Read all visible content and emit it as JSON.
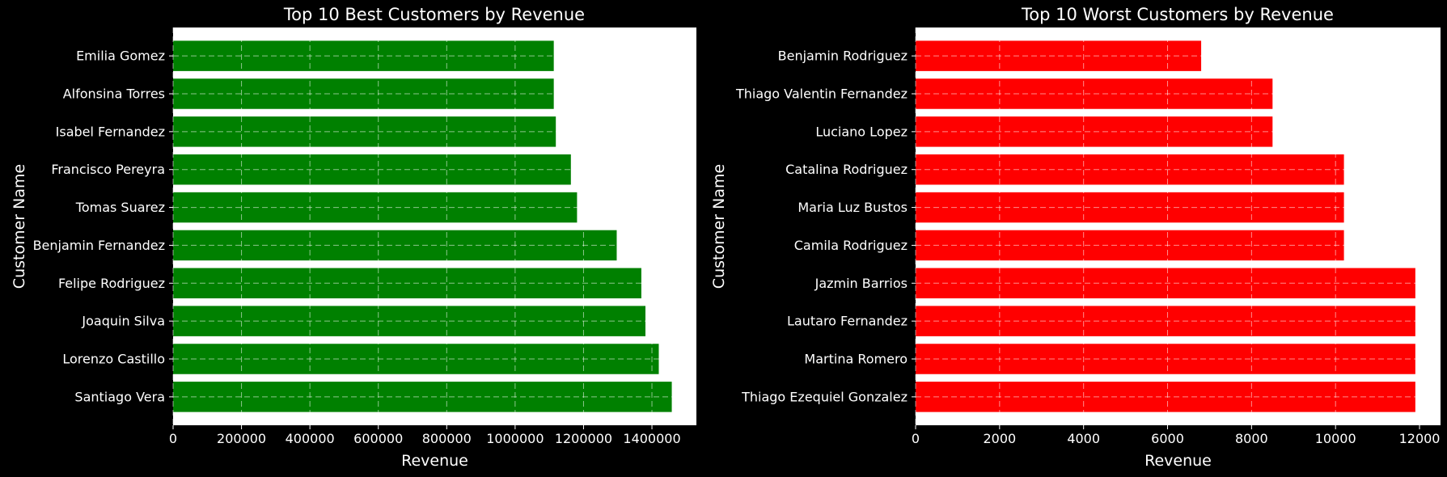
{
  "chart_data": [
    {
      "type": "bar",
      "orientation": "horizontal",
      "title": "Top 10 Best Customers by Revenue",
      "xlabel": "Revenue",
      "ylabel": "Customer Name",
      "xlim": [
        0,
        1530000
      ],
      "xticks": [
        0,
        200000,
        400000,
        600000,
        800000,
        1000000,
        1200000,
        1400000
      ],
      "grid": true,
      "bar_color": "#008000",
      "categories": [
        "Santiago Vera",
        "Lorenzo Castillo",
        "Joaquin Silva",
        "Felipe Rodriguez",
        "Benjamin Fernandez",
        "Tomas Suarez",
        "Francisco Pereyra",
        "Isabel Fernandez",
        "Alfonsina Torres",
        "Emilia Gomez"
      ],
      "values": [
        1458000,
        1420000,
        1381000,
        1369000,
        1297000,
        1181000,
        1163000,
        1119000,
        1113000,
        1113000
      ]
    },
    {
      "type": "bar",
      "orientation": "horizontal",
      "title": "Top 10 Worst Customers by Revenue",
      "xlabel": "Revenue",
      "ylabel": "Customer Name",
      "xlim": [
        0,
        12500
      ],
      "xticks": [
        0,
        2000,
        4000,
        6000,
        8000,
        10000,
        12000
      ],
      "grid": true,
      "bar_color": "#ff0000",
      "categories": [
        "Thiago Ezequiel Gonzalez",
        "Martina Romero",
        "Lautaro Fernandez",
        "Jazmin Barrios",
        "Camila Rodriguez",
        "Maria Luz Bustos",
        "Catalina Rodriguez",
        "Luciano Lopez",
        "Thiago Valentin Fernandez",
        "Benjamin Rodriguez"
      ],
      "values": [
        11900,
        11900,
        11900,
        11900,
        10200,
        10200,
        10200,
        8500,
        8500,
        6800
      ]
    }
  ]
}
